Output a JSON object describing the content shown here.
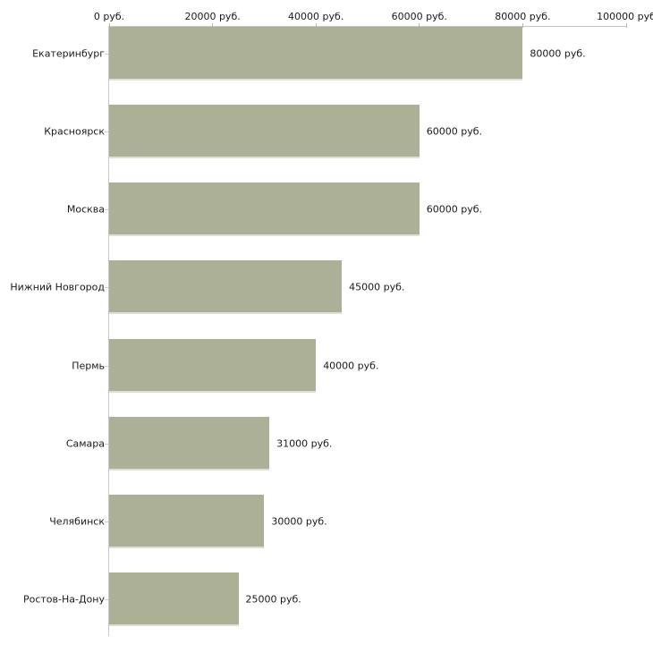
{
  "chart_data": {
    "type": "bar",
    "orientation": "horizontal",
    "title": "",
    "xlabel": "",
    "ylabel": "",
    "categories": [
      "Екатеринбург",
      "Красноярск",
      "Москва",
      "Нижний Новгород",
      "Пермь",
      "Самара",
      "Челябинск",
      "Ростов-На-Дону"
    ],
    "values": [
      80000,
      60000,
      60000,
      45000,
      40000,
      31000,
      30000,
      25000
    ],
    "value_labels": [
      "80000 руб.",
      "60000 руб.",
      "60000 руб.",
      "45000 руб.",
      "40000 руб.",
      "31000 руб.",
      "30000 руб.",
      "25000 руб."
    ],
    "x_axis": {
      "position": "top",
      "range": [
        0,
        100000
      ],
      "ticks": [
        0,
        20000,
        40000,
        60000,
        80000,
        100000
      ],
      "tick_labels": [
        "0 руб.",
        "20000 руб.",
        "40000 руб.",
        "60000 руб.",
        "80000 руб.",
        "100000 руб"
      ]
    },
    "grid": false,
    "legend": false,
    "colors": {
      "bar_fill": "#abb096",
      "bar_edge_light": "#dee0d3",
      "axis_line": "#c8c8c4",
      "axis_tick": "#b4b89b",
      "category_tick": "#cdd0bd",
      "text": "#1a1a1a",
      "background": "#ffffff"
    }
  }
}
